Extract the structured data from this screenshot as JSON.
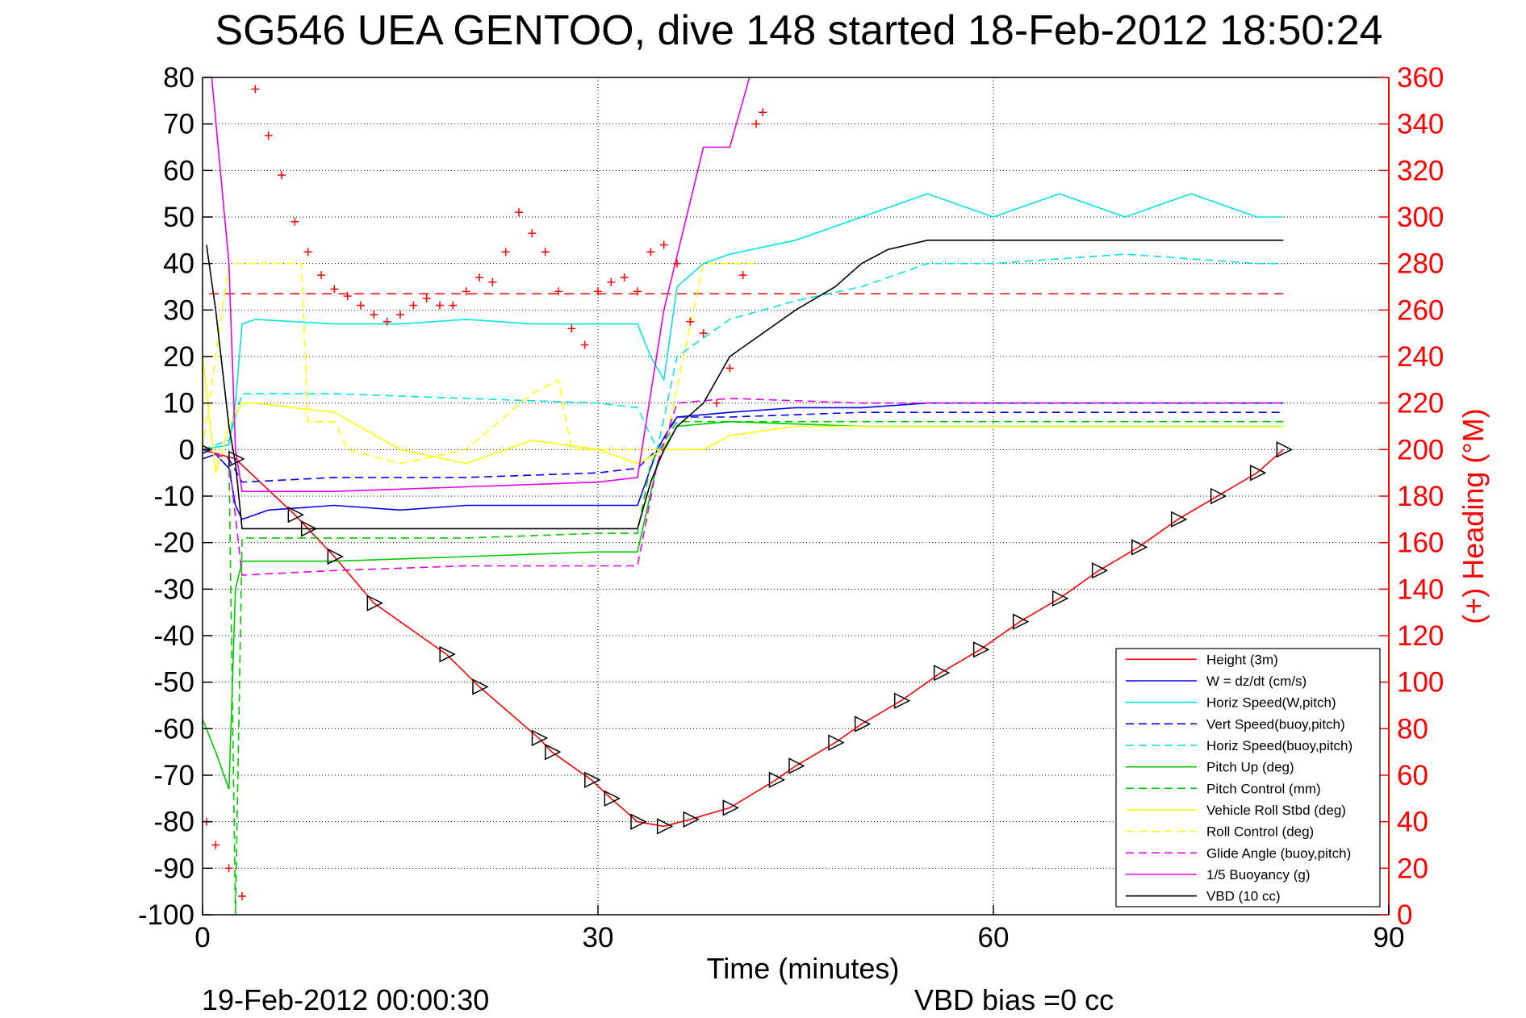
{
  "chart_data": {
    "type": "line",
    "title": "SG546 UEA GENTOO, dive 148 started 18-Feb-2012 18:50:24",
    "xlabel": "Time (minutes)",
    "ylabel_right": "(+) Heading (°M)",
    "footer_left": "19-Feb-2012 00:00:30",
    "footer_right": "VBD bias =0 cc",
    "xlim": [
      0,
      90
    ],
    "ylim": [
      -100,
      80
    ],
    "y2lim": [
      0,
      360
    ],
    "xticks": [
      "0",
      "30",
      "60",
      "90"
    ],
    "yticks": [
      "80",
      "70",
      "60",
      "50",
      "40",
      "30",
      "20",
      "10",
      "0",
      "-10",
      "-20",
      "-30",
      "-40",
      "-50",
      "-60",
      "-70",
      "-80",
      "-90",
      "-100"
    ],
    "y2ticks": [
      "360",
      "340",
      "320",
      "300",
      "280",
      "260",
      "240",
      "220",
      "200",
      "180",
      "160",
      "140",
      "120",
      "100",
      "80",
      "60",
      "40",
      "20",
      "0"
    ],
    "grid": true,
    "legend_position": "bottom-right",
    "series": [
      {
        "name": "Height (3m)",
        "color": "#ff0000",
        "dash": "solid",
        "x": [
          0,
          2.5,
          7,
          8,
          10,
          13,
          18.5,
          21,
          25.5,
          26.5,
          29.5,
          31,
          33,
          35,
          37,
          40,
          43.5,
          45,
          48,
          50,
          53,
          56,
          59,
          62,
          65,
          68,
          71,
          74,
          77,
          80,
          82
        ],
        "y": [
          0,
          -2,
          -14,
          -17,
          -23,
          -33,
          -44,
          -51,
          -62,
          -65,
          -71,
          -75,
          -80,
          -81,
          -79.5,
          -77,
          -71,
          -68,
          -63,
          -59,
          -54,
          -48,
          -43,
          -37,
          -32,
          -26,
          -21,
          -15,
          -10,
          -5,
          0
        ]
      },
      {
        "name": "W = dz/dt (cm/s)",
        "color": "#0000ff",
        "dash": "solid",
        "x": [
          0,
          1,
          2,
          2.5,
          3,
          5,
          10,
          15,
          20,
          25,
          30,
          33,
          34.5,
          35.5,
          36,
          40,
          45,
          50,
          55,
          60,
          65,
          70,
          75,
          80,
          82
        ],
        "y": [
          -2,
          -1,
          -4,
          -12,
          -15,
          -13,
          -12,
          -13,
          -12,
          -12,
          -12,
          -12,
          0,
          5,
          7,
          8,
          9,
          9,
          10,
          10,
          10,
          10,
          10,
          10,
          10
        ]
      },
      {
        "name": "Horiz Speed(W,pitch)",
        "color": "#00e5e5",
        "dash": "solid",
        "x": [
          0,
          2,
          2.5,
          3,
          4,
          10,
          15,
          20,
          25,
          30,
          33,
          34,
          35,
          36,
          38,
          40,
          45,
          50,
          55,
          60,
          65,
          70,
          75,
          80,
          82
        ],
        "y": [
          0,
          1,
          10,
          27,
          28,
          27,
          27,
          28,
          27,
          27,
          27,
          20,
          15,
          35,
          40,
          42,
          45,
          50,
          55,
          50,
          55,
          50,
          55,
          50,
          50
        ]
      },
      {
        "name": "Vert Speed(buoy,pitch)",
        "color": "#0000ff",
        "dash": "dashed",
        "x": [
          0,
          2,
          3,
          10,
          20,
          30,
          33,
          34.5,
          36,
          40,
          50,
          60,
          70,
          80,
          82
        ],
        "y": [
          0,
          -2,
          -7,
          -6,
          -6,
          -5,
          -4,
          0,
          7,
          7,
          8,
          8,
          8,
          8,
          8
        ]
      },
      {
        "name": "Horiz Speed(buoy,pitch)",
        "color": "#00e5e5",
        "dash": "dashed",
        "x": [
          0,
          2,
          3,
          10,
          20,
          30,
          33,
          34.5,
          36,
          40,
          45,
          50,
          55,
          60,
          70,
          80,
          82
        ],
        "y": [
          0,
          2,
          12,
          12,
          11,
          10,
          9,
          0,
          20,
          28,
          32,
          35,
          40,
          40,
          42,
          40,
          40
        ]
      },
      {
        "name": "Pitch Up (deg)",
        "color": "#00cc00",
        "dash": "solid",
        "x": [
          0,
          1,
          2,
          2.5,
          3,
          10,
          20,
          30,
          33,
          34.5,
          36,
          40,
          50,
          60,
          70,
          80,
          82
        ],
        "y": [
          -58,
          -65,
          -73,
          -30,
          -24,
          -24,
          -23,
          -22,
          -22,
          -3,
          5,
          6,
          5,
          5,
          5,
          5,
          5
        ]
      },
      {
        "name": "Pitch Control (mm)",
        "color": "#00cc00",
        "dash": "dashed",
        "x": [
          0,
          2,
          2.5,
          3,
          10,
          20,
          30,
          33,
          34,
          36,
          40,
          50,
          60,
          70,
          80,
          82
        ],
        "y": [
          0,
          -2,
          -100,
          -19,
          -19,
          -19,
          -18,
          -18,
          -3,
          6,
          6,
          6,
          6,
          6,
          6,
          6
        ]
      },
      {
        "name": "Vehicle Roll Stbd (deg)",
        "color": "#ffff00",
        "dash": "solid",
        "x": [
          0,
          1,
          2,
          3,
          4,
          10,
          15,
          20,
          25,
          30,
          33,
          35,
          38,
          40,
          45,
          50,
          55,
          60,
          65,
          70,
          75,
          80,
          82
        ],
        "y": [
          20,
          -5,
          5,
          10,
          10,
          8,
          0,
          -3,
          2,
          0,
          -3,
          0,
          0,
          3,
          5,
          5,
          5,
          5,
          5,
          5,
          5,
          5,
          5
        ]
      },
      {
        "name": "Roll Control (deg)",
        "color": "#ffff00",
        "dash": "dashed",
        "x": [
          0,
          2,
          3,
          5,
          7.5,
          8,
          10,
          11,
          15,
          20,
          25,
          27,
          28,
          30,
          33,
          35,
          38,
          40,
          42
        ],
        "y": [
          0,
          40,
          40,
          40,
          40,
          6,
          6,
          0,
          -3,
          0,
          12,
          15,
          0,
          0,
          0,
          0,
          40,
          40,
          40
        ]
      },
      {
        "name": "Glide Angle (buoy,pitch)",
        "color": "#e600e6",
        "dash": "dashed",
        "x": [
          0,
          2,
          3,
          10,
          20,
          30,
          33,
          34.5,
          36,
          40,
          50,
          60,
          70,
          80,
          82
        ],
        "y": [
          0,
          -2,
          -27,
          -26,
          -25,
          -25,
          -25,
          -3,
          10,
          11,
          10,
          10,
          10,
          10,
          10
        ]
      },
      {
        "name": "1/5 Buoyancy (g)",
        "color": "#e600e6",
        "dash": "solid",
        "x": [
          0.7,
          2,
          2.5,
          3,
          10,
          20,
          30,
          33,
          35,
          38,
          40,
          41.5
        ],
        "y": [
          80,
          40,
          0,
          -9,
          -9,
          -8,
          -7,
          -6,
          30,
          65,
          65,
          80
        ]
      },
      {
        "name": "VBD (10 cc)",
        "color": "#000000",
        "dash": "solid",
        "x": [
          0.3,
          1,
          2,
          2.5,
          3,
          10,
          20,
          30,
          33,
          34,
          35,
          36,
          38,
          40,
          45,
          48,
          50,
          52,
          55,
          60,
          70,
          80,
          82
        ],
        "y": [
          44,
          30,
          5,
          -3,
          -17,
          -17,
          -17,
          -17,
          -17,
          -7,
          0,
          5,
          10,
          20,
          30,
          35,
          40,
          43,
          45,
          45,
          45,
          45,
          45
        ]
      }
    ],
    "heading_points_deg": {
      "name": "(+) Heading",
      "color": "#ff0000",
      "x": [
        0.3,
        1,
        2,
        3,
        4,
        5,
        6,
        7,
        8,
        9,
        10,
        11,
        12,
        13,
        14,
        15,
        16,
        17,
        18,
        19,
        20,
        21,
        22,
        23,
        24,
        25,
        26,
        27,
        28,
        29,
        30,
        31,
        32,
        33,
        34,
        35,
        36,
        37,
        38,
        39,
        40,
        41,
        42,
        42.5
      ],
      "y": [
        40,
        30,
        20,
        8,
        355,
        335,
        318,
        298,
        285,
        275,
        269,
        266,
        262,
        258,
        255,
        258,
        262,
        265,
        262,
        262,
        268,
        274,
        272,
        285,
        302,
        293,
        285,
        268,
        252,
        245,
        268,
        272,
        274,
        268,
        285,
        288,
        280,
        255,
        250,
        220,
        235,
        275,
        340,
        345
      ]
    },
    "reference_line_deg": 267
  }
}
